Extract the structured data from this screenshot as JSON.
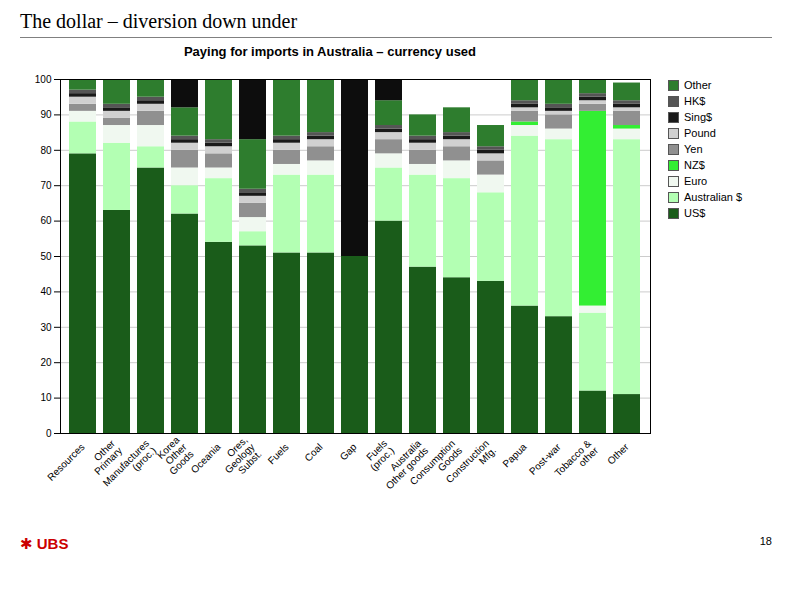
{
  "chart_data": {
    "type": "bar",
    "stacked": true,
    "title": "The dollar – diversion down under",
    "subtitle": "Paying for imports in Australia – currency used",
    "annotations": [
      {
        "text": "✱ UBS",
        "color": "#cc0000"
      },
      {
        "text": "18"
      }
    ],
    "categories": [
      "Resources",
      "Other\nPrimary",
      "Manufactures\n(proc.)",
      "Korea\nOther\nGoods",
      "Oceania",
      "Ores,\nGeology\nSubst.",
      "Fuels",
      "Coal",
      "Gap",
      "Fuels\n(proc.)",
      "Australia\nOther goods",
      "Consumption\nGoods",
      "Construction\nMfg.",
      "Papua",
      "Post-war",
      "Tobacco &\nother",
      "Other"
    ],
    "series": [
      {
        "name": "US$",
        "color": "#1a5c1a",
        "values": [
          79,
          63,
          75,
          62,
          54,
          53,
          51,
          51,
          50,
          60,
          47,
          44,
          43,
          36,
          33,
          12,
          11
        ]
      },
      {
        "name": "Australian $",
        "color": "#b3ffb3",
        "values": [
          9,
          19,
          6,
          8,
          18,
          4,
          22,
          22,
          0,
          15,
          26,
          28,
          25,
          48,
          50,
          22,
          72
        ]
      },
      {
        "name": "Euro",
        "color": "#f0f8f0",
        "values": [
          3,
          5,
          6,
          5,
          3,
          4,
          3,
          4,
          0,
          4,
          3,
          5,
          5,
          3,
          3,
          2,
          3
        ]
      },
      {
        "name": "NZ$",
        "color": "#33ee33",
        "values": [
          0,
          0,
          0,
          0,
          0,
          0,
          0,
          0,
          0,
          0,
          0,
          0,
          0,
          1,
          0,
          55,
          1
        ]
      },
      {
        "name": "Yen",
        "color": "#909090",
        "values": [
          2,
          2,
          4,
          5,
          4,
          4,
          4,
          4,
          0,
          4,
          4,
          4,
          4,
          3,
          4,
          2,
          4
        ]
      },
      {
        "name": "Pound",
        "color": "#d0d0d0",
        "values": [
          2,
          2,
          2,
          2,
          2,
          2,
          2,
          2,
          0,
          2,
          2,
          2,
          2,
          1,
          1,
          1,
          1
        ]
      },
      {
        "name": "Sing$",
        "color": "#1a1a1a",
        "values": [
          1,
          1,
          1,
          1,
          1,
          1,
          1,
          1,
          0,
          1,
          1,
          1,
          1,
          1,
          1,
          1,
          1
        ]
      },
      {
        "name": "HK$",
        "color": "#555555",
        "values": [
          1,
          1,
          1,
          1,
          1,
          1,
          1,
          1,
          0,
          1,
          1,
          1,
          1,
          1,
          1,
          1,
          1
        ]
      },
      {
        "name": "Other",
        "color": "#2e7d2e",
        "values": [
          3,
          7,
          5,
          8,
          17,
          14,
          16,
          15,
          0,
          7,
          6,
          7,
          6,
          6,
          7,
          4,
          5
        ]
      },
      {
        "name": null,
        "color": "#0d0d0d",
        "values": [
          0,
          0,
          0,
          8,
          0,
          17,
          0,
          0,
          50,
          6,
          0,
          0,
          0,
          0,
          0,
          0,
          0
        ]
      }
    ],
    "ylim": [
      0,
      100
    ],
    "yticks": [
      0,
      10,
      20,
      30,
      40,
      50,
      60,
      70,
      80,
      90,
      100
    ],
    "grid": true,
    "legend": "right"
  }
}
